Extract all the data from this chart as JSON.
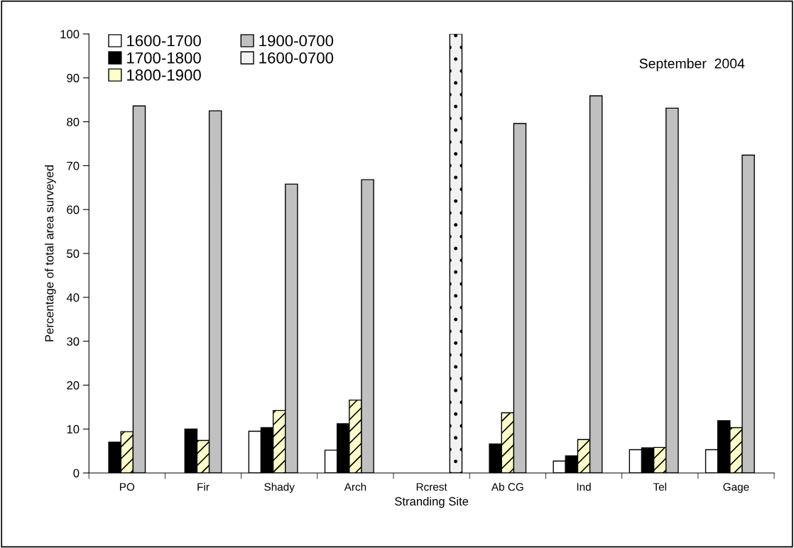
{
  "chart_data": {
    "type": "bar",
    "xlabel": "Stranding Site",
    "ylabel": "Percentage of total area surveyed",
    "categories": [
      "PO",
      "Fir",
      "Shady",
      "Arch",
      "Rcrest",
      "Ab CG",
      "Ind",
      "Tel",
      "Gage"
    ],
    "series": [
      {
        "name": "1600-1700",
        "color": "#ffffff",
        "values": [
          null,
          null,
          9.5,
          5.2,
          null,
          null,
          2.7,
          5.3,
          5.3
        ]
      },
      {
        "name": "1700-1800",
        "color": "#000000",
        "values": [
          7.0,
          10.0,
          10.3,
          11.2,
          null,
          6.6,
          3.9,
          5.7,
          11.9
        ]
      },
      {
        "name": "1800-1900",
        "color": "#ffffcc",
        "values": [
          9.4,
          7.4,
          14.2,
          16.6,
          null,
          13.7,
          7.6,
          5.8,
          10.3
        ]
      },
      {
        "name": "1900-0700",
        "color": "#c0c0c0",
        "values": [
          83.6,
          82.5,
          65.8,
          66.8,
          null,
          79.6,
          85.9,
          83.1,
          72.4
        ]
      },
      {
        "name": "1600-0700",
        "color": "#f2f2f2",
        "values": [
          null,
          null,
          null,
          null,
          100,
          null,
          null,
          null,
          null
        ]
      }
    ],
    "ylim": [
      0,
      100
    ],
    "yticks": [
      0,
      10,
      20,
      30,
      40,
      50,
      60,
      70,
      80,
      90,
      100
    ],
    "annotations": [
      "September  2004"
    ],
    "legend": "top left",
    "grid": false
  }
}
